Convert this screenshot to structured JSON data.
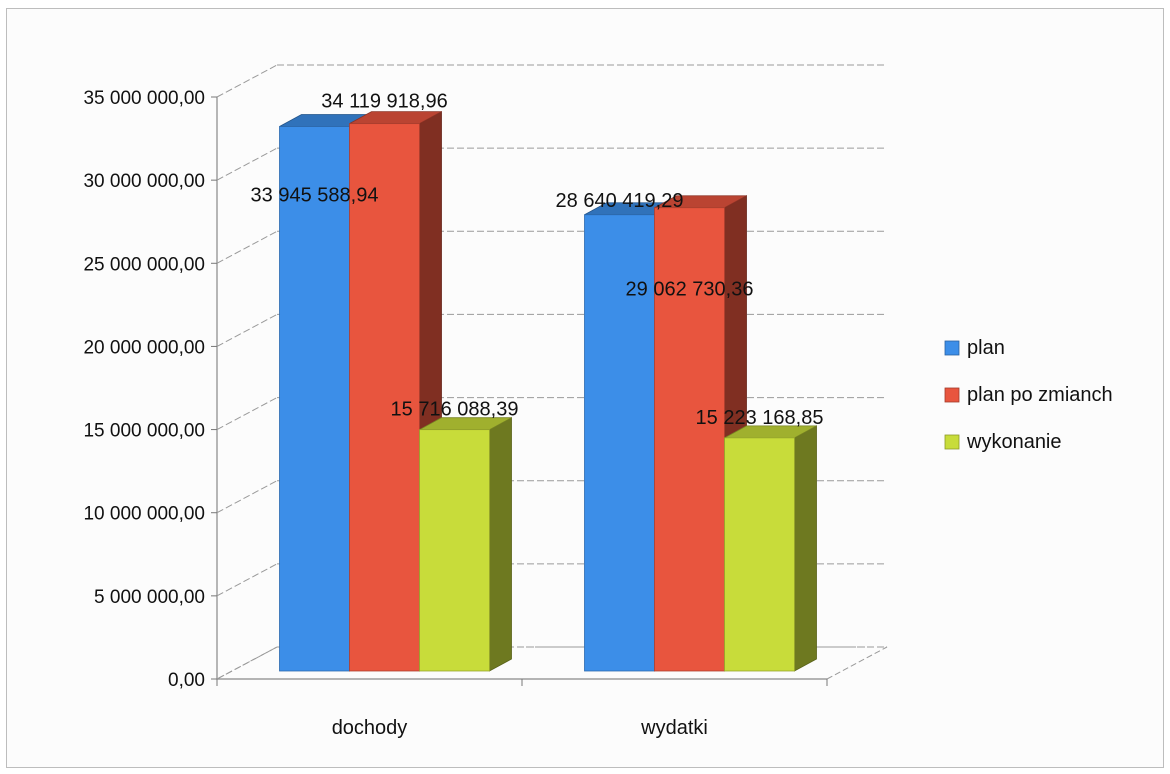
{
  "chart_data": {
    "type": "bar",
    "categories": [
      "dochody",
      "wydatki"
    ],
    "series": [
      {
        "name": "plan",
        "values": [
          33945588.94,
          28640419.29
        ],
        "color": "#3c8ee8",
        "labels": [
          "33 945 588,94",
          "28 640 419,29"
        ]
      },
      {
        "name": "plan po zmianch",
        "values": [
          34119918.96,
          29062730.36
        ],
        "color": "#e8553e",
        "labels": [
          "34 119 918,96",
          "29 062 730,36"
        ]
      },
      {
        "name": "wykonanie",
        "values": [
          15716088.39,
          15223168.85
        ],
        "color": "#c8dc3a",
        "labels": [
          "15 716 088,39",
          "15 223 168,85"
        ]
      }
    ],
    "y_ticks": [
      "0,00",
      "5 000 000,00",
      "10 000 000,00",
      "15 000 000,00",
      "20 000 000,00",
      "25 000 000,00",
      "30 000 000,00",
      "35 000 000,00"
    ],
    "ylim": [
      0,
      35000000
    ],
    "grid": true,
    "legend": "right",
    "style": "3d-clustered-column"
  }
}
